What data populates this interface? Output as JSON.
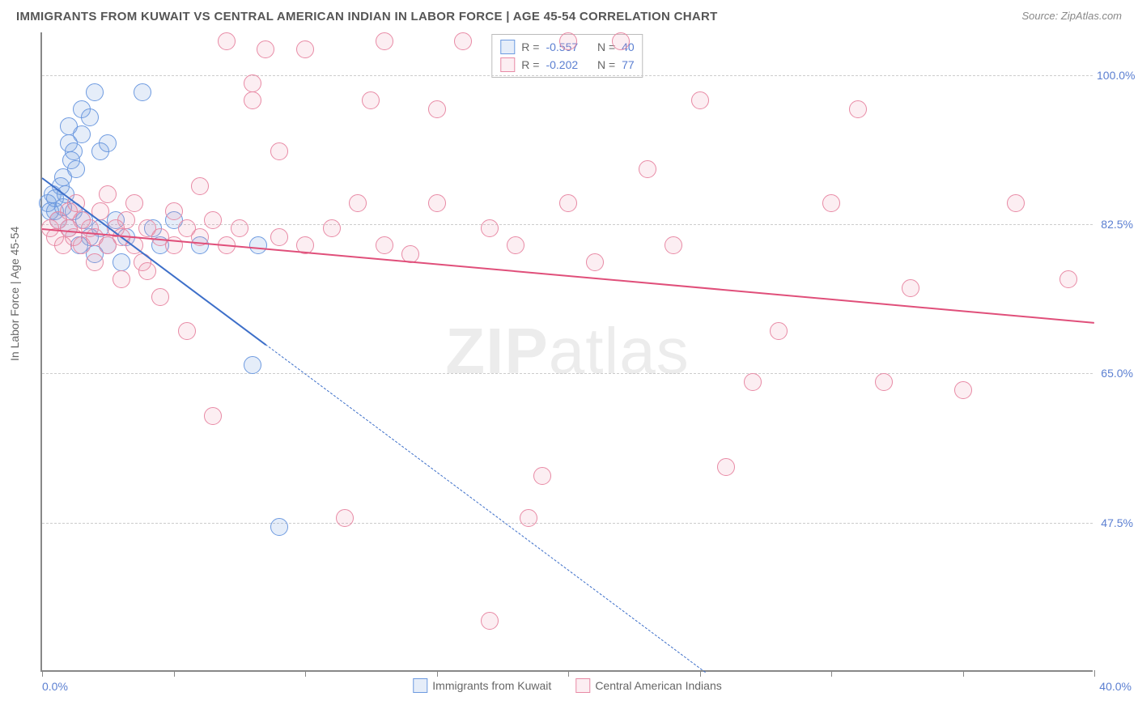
{
  "title": "IMMIGRANTS FROM KUWAIT VS CENTRAL AMERICAN INDIAN IN LABOR FORCE | AGE 45-54 CORRELATION CHART",
  "source": "Source: ZipAtlas.com",
  "ylabel": "In Labor Force | Age 45-54",
  "watermark_bold": "ZIP",
  "watermark_rest": "atlas",
  "chart": {
    "type": "scatter",
    "xlim": [
      0,
      40
    ],
    "ylim": [
      30,
      105
    ],
    "x_tick_positions": [
      0,
      5,
      10,
      15,
      20,
      25,
      30,
      35,
      40
    ],
    "x_tick_labels_shown": {
      "0": "0.0%",
      "40": "40.0%"
    },
    "y_ticks": [
      47.5,
      65.0,
      82.5,
      100.0
    ],
    "y_tick_labels": [
      "47.5%",
      "65.0%",
      "82.5%",
      "100.0%"
    ],
    "grid_color": "#cccccc",
    "background_color": "#ffffff",
    "point_radius": 11,
    "point_stroke_width": 1.5,
    "point_fill_opacity": 0.15,
    "series": [
      {
        "name": "Immigrants from Kuwait",
        "color": "#6d9ae0",
        "fill": "rgba(109,154,224,0.18)",
        "stroke": "#6d9ae0",
        "R": "-0.557",
        "N": "40",
        "regression": {
          "x1": 0,
          "y1": 88,
          "x2": 10,
          "y2": 65,
          "solid_until_x": 8.5,
          "line_color": "#3d6fc9",
          "line_width": 2
        },
        "points": [
          [
            0.2,
            85
          ],
          [
            0.3,
            84
          ],
          [
            0.4,
            86
          ],
          [
            0.5,
            84
          ],
          [
            0.5,
            85.5
          ],
          [
            0.6,
            83
          ],
          [
            0.7,
            87
          ],
          [
            0.8,
            84.5
          ],
          [
            0.8,
            88
          ],
          [
            0.9,
            86
          ],
          [
            1.0,
            92
          ],
          [
            1.0,
            94
          ],
          [
            1.1,
            90
          ],
          [
            1.2,
            91
          ],
          [
            1.3,
            89
          ],
          [
            1.5,
            93
          ],
          [
            1.5,
            96
          ],
          [
            1.8,
            95
          ],
          [
            2.0,
            98
          ],
          [
            2.2,
            91
          ],
          [
            2.5,
            92
          ],
          [
            1.0,
            82
          ],
          [
            1.2,
            84
          ],
          [
            1.4,
            80
          ],
          [
            1.6,
            83
          ],
          [
            1.8,
            81
          ],
          [
            2.0,
            79
          ],
          [
            2.2,
            82
          ],
          [
            2.5,
            80
          ],
          [
            2.8,
            83
          ],
          [
            3.0,
            78
          ],
          [
            3.2,
            81
          ],
          [
            3.8,
            98
          ],
          [
            4.2,
            82
          ],
          [
            4.5,
            80
          ],
          [
            5.0,
            83
          ],
          [
            6.0,
            80
          ],
          [
            8.2,
            80
          ],
          [
            8.0,
            66
          ],
          [
            9.0,
            47
          ]
        ]
      },
      {
        "name": "Central American Indians",
        "color": "#e88aa5",
        "fill": "rgba(232,138,165,0.15)",
        "stroke": "#e88aa5",
        "R": "-0.202",
        "N": "77",
        "regression": {
          "x1": 0,
          "y1": 82,
          "x2": 40,
          "y2": 71,
          "solid_until_x": 40,
          "line_color": "#e04f7a",
          "line_width": 2
        },
        "points": [
          [
            0.3,
            82
          ],
          [
            0.5,
            81
          ],
          [
            0.6,
            83
          ],
          [
            0.8,
            80
          ],
          [
            1.0,
            82
          ],
          [
            1.0,
            84
          ],
          [
            1.2,
            81
          ],
          [
            1.3,
            85
          ],
          [
            1.5,
            80
          ],
          [
            1.5,
            83
          ],
          [
            1.8,
            82
          ],
          [
            2.0,
            81
          ],
          [
            2.0,
            78
          ],
          [
            2.2,
            84
          ],
          [
            2.5,
            80
          ],
          [
            2.5,
            86
          ],
          [
            2.8,
            82
          ],
          [
            3.0,
            81
          ],
          [
            3.0,
            76
          ],
          [
            3.2,
            83
          ],
          [
            3.5,
            80
          ],
          [
            3.5,
            85
          ],
          [
            3.8,
            78
          ],
          [
            4.0,
            82
          ],
          [
            4.0,
            77
          ],
          [
            4.5,
            81
          ],
          [
            4.5,
            74
          ],
          [
            5.0,
            80
          ],
          [
            5.0,
            84
          ],
          [
            5.5,
            82
          ],
          [
            5.5,
            70
          ],
          [
            6.0,
            81
          ],
          [
            6.0,
            87
          ],
          [
            6.5,
            83
          ],
          [
            6.5,
            60
          ],
          [
            7.0,
            80
          ],
          [
            7.0,
            104
          ],
          [
            7.5,
            82
          ],
          [
            8.0,
            97
          ],
          [
            8.0,
            99
          ],
          [
            8.5,
            103
          ],
          [
            9.0,
            81
          ],
          [
            9.0,
            91
          ],
          [
            10.0,
            80
          ],
          [
            10.0,
            103
          ],
          [
            11.0,
            82
          ],
          [
            11.5,
            48
          ],
          [
            12.0,
            85
          ],
          [
            12.5,
            97
          ],
          [
            13.0,
            80
          ],
          [
            13.0,
            104
          ],
          [
            14.0,
            79
          ],
          [
            15.0,
            96
          ],
          [
            15.0,
            85
          ],
          [
            16.0,
            104
          ],
          [
            17.0,
            82
          ],
          [
            17.0,
            36
          ],
          [
            18.0,
            80
          ],
          [
            18.5,
            48
          ],
          [
            19.0,
            53
          ],
          [
            20.0,
            85
          ],
          [
            20.0,
            104
          ],
          [
            21.0,
            78
          ],
          [
            22.0,
            104
          ],
          [
            23.0,
            89
          ],
          [
            24.0,
            80
          ],
          [
            25.0,
            97
          ],
          [
            26.0,
            54
          ],
          [
            27.0,
            64
          ],
          [
            28.0,
            70
          ],
          [
            30.0,
            85
          ],
          [
            31.0,
            96
          ],
          [
            32.0,
            64
          ],
          [
            33.0,
            75
          ],
          [
            35.0,
            63
          ],
          [
            37.0,
            85
          ],
          [
            39.0,
            76
          ]
        ]
      }
    ]
  },
  "legend": {
    "series1_label": "Immigrants from Kuwait",
    "series2_label": "Central American Indians"
  },
  "stats_labels": {
    "R": "R =",
    "N": "N ="
  }
}
